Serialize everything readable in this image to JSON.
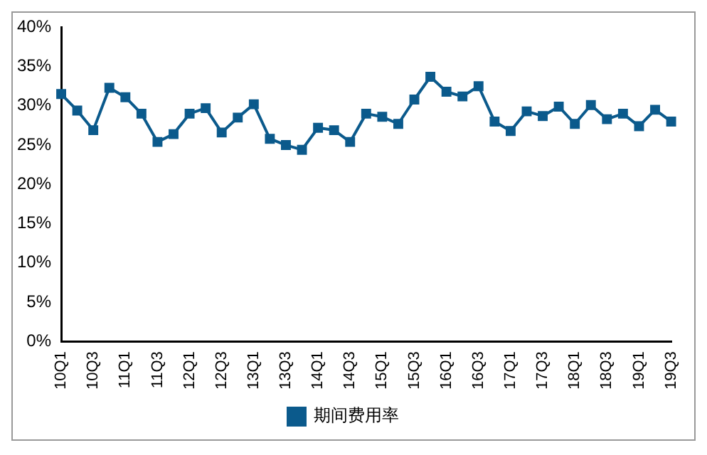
{
  "chart_data": {
    "type": "line",
    "categories": [
      "10Q1",
      null,
      "10Q3",
      null,
      "11Q1",
      null,
      "11Q3",
      null,
      "12Q1",
      null,
      "12Q3",
      null,
      "13Q1",
      null,
      "13Q3",
      null,
      "14Q1",
      null,
      "14Q3",
      null,
      "15Q1",
      null,
      "15Q3",
      null,
      "16Q1",
      null,
      "16Q3",
      null,
      "17Q1",
      null,
      "17Q3",
      null,
      "18Q1",
      null,
      "18Q3",
      null,
      "19Q1",
      null,
      "19Q3"
    ],
    "series": [
      {
        "name": "期间费用率",
        "color": "#0b5a8c",
        "values": [
          31.5,
          29.4,
          26.9,
          32.3,
          31.1,
          29.0,
          25.4,
          26.4,
          29.0,
          29.7,
          26.6,
          28.5,
          30.2,
          25.8,
          25.0,
          24.4,
          27.2,
          26.9,
          25.4,
          29.0,
          28.6,
          27.7,
          30.8,
          33.7,
          31.8,
          31.2,
          32.5,
          28.0,
          26.8,
          29.3,
          28.7,
          29.9,
          27.7,
          30.1,
          28.3,
          29.0,
          27.4,
          29.5,
          28.0
        ]
      }
    ],
    "ylim": [
      0,
      40
    ],
    "yticks": [
      {
        "value": 0,
        "label": "0%"
      },
      {
        "value": 5,
        "label": "5%"
      },
      {
        "value": 10,
        "label": "10%"
      },
      {
        "value": 15,
        "label": "15%"
      },
      {
        "value": 20,
        "label": "20%"
      },
      {
        "value": 25,
        "label": "25%"
      },
      {
        "value": 30,
        "label": "30%"
      },
      {
        "value": 35,
        "label": "35%"
      },
      {
        "value": 40,
        "label": "40%"
      }
    ],
    "grid": false,
    "legend": "bottom",
    "marker": "square",
    "line_style": "solid"
  }
}
